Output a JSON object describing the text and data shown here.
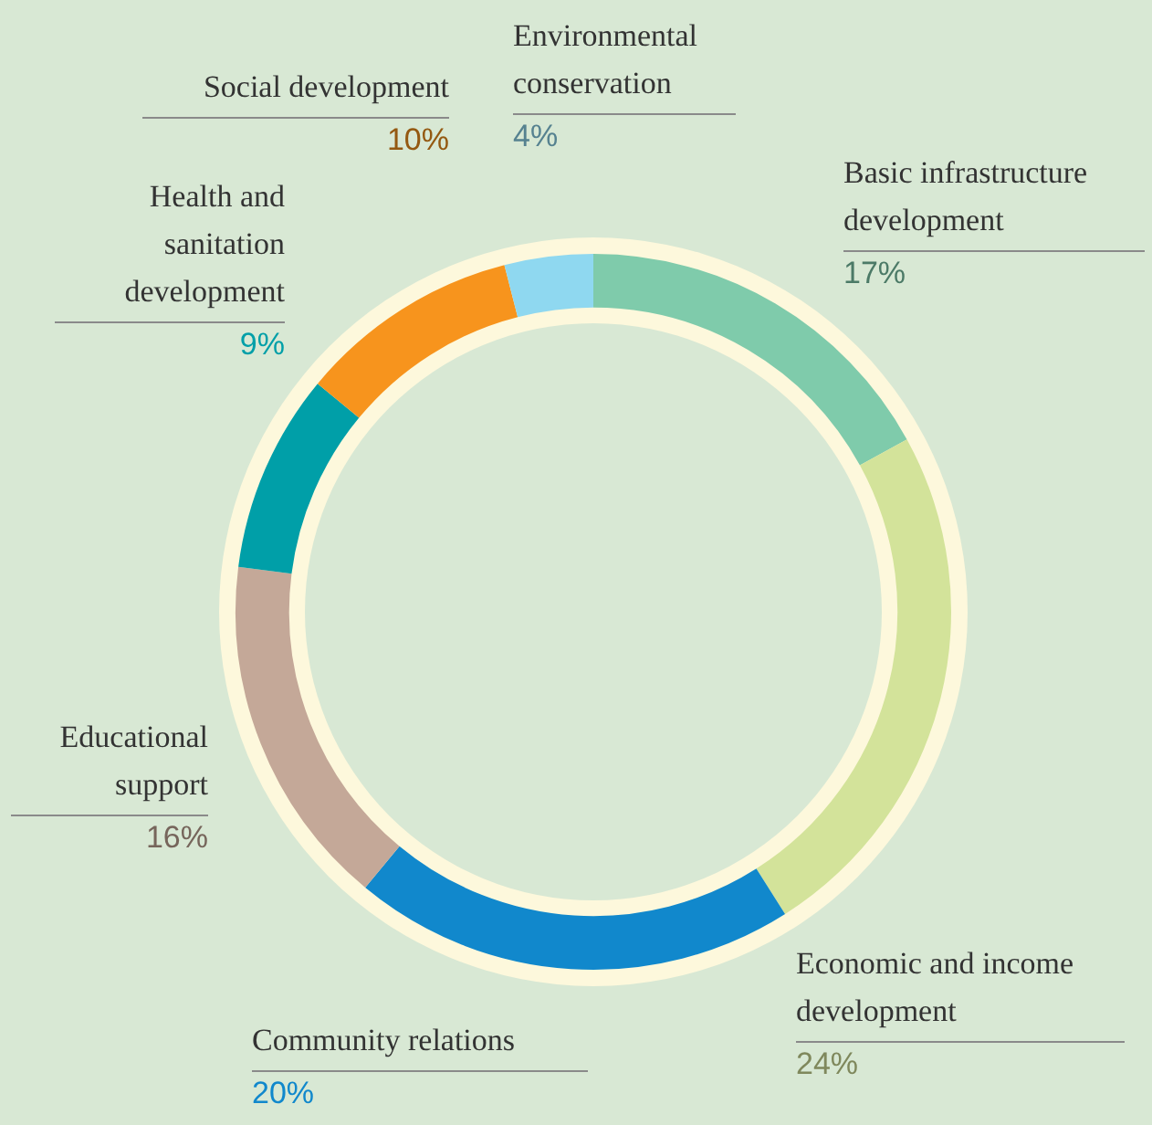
{
  "chart_data": {
    "type": "donut",
    "categories": [
      "Basic infrastructure development",
      "Economic and income development",
      "Community relations",
      "Educational support",
      "Health and sanitation development",
      "Social development",
      "Environmental conservation"
    ],
    "values": [
      17,
      24,
      20,
      16,
      9,
      10,
      4
    ],
    "value_labels": [
      "17%",
      "24%",
      "20%",
      "16%",
      "9%",
      "10%",
      "4%"
    ],
    "colors": [
      "#7fcbab",
      "#d3e39a",
      "#1188cc",
      "#c4a898",
      "#009fa8",
      "#f7941d",
      "#8fd8f0"
    ],
    "legend": false
  }
}
